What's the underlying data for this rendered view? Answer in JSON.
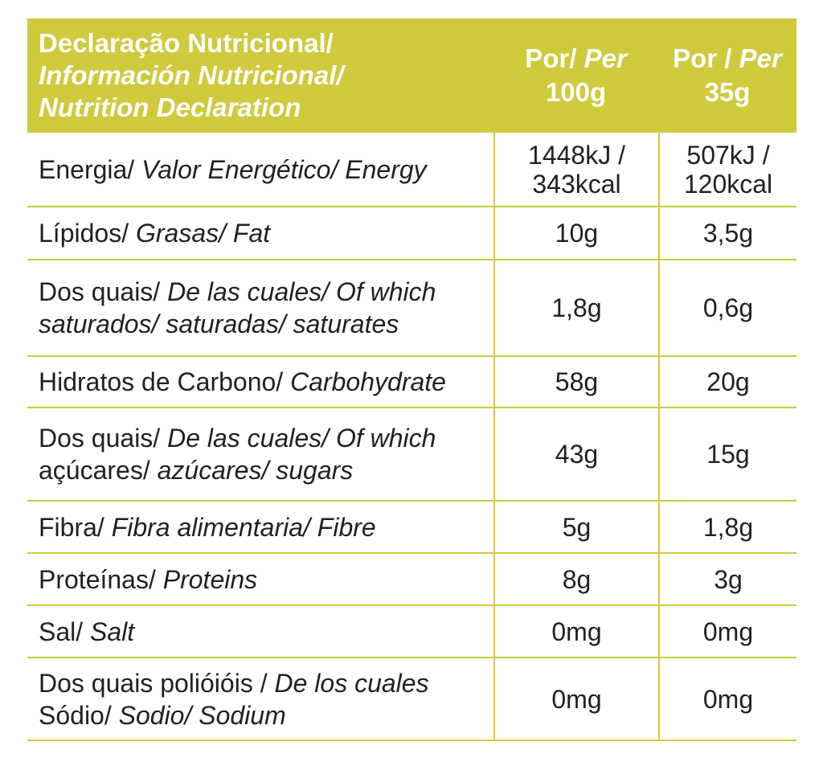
{
  "header": {
    "title_line1": "Declaração Nutricional/",
    "title_line2": "Información Nutricional/",
    "title_line3": "Nutrition Declaration",
    "col1_a": "Por/",
    "col1_b": " Per",
    "col1_c": "100g",
    "col2_a": "Por /",
    "col2_b": " Per",
    "col2_c": "35g"
  },
  "rows": [
    {
      "pt": "Energia/",
      "it1": " Valor Energético/ Energy",
      "pt2": "",
      "it2": "",
      "v100": "1448kJ /",
      "v100b": "343kcal",
      "v35": "507kJ /",
      "v35b": "120kcal"
    },
    {
      "pt": "Lípidos/",
      "it1": " Grasas/ Fat",
      "pt2": "",
      "it2": "",
      "v100": "10g",
      "v100b": "",
      "v35": "3,5g",
      "v35b": ""
    },
    {
      "pt": "Dos quais/",
      "it1": " De las cuales/ Of which",
      "pt2": "",
      "it2": "saturados/ saturadas/ saturates",
      "v100": "1,8g",
      "v100b": "",
      "v35": "0,6g",
      "v35b": ""
    },
    {
      "pt": "Hidratos de Carbono/",
      "it1": " Carbohydrate",
      "pt2": "",
      "it2": "",
      "v100": "58g",
      "v100b": "",
      "v35": "20g",
      "v35b": ""
    },
    {
      "pt": "Dos quais/",
      "it1": " De las cuales/ Of which",
      "pt2": "açúcares/",
      "it2": " azúcares/ sugars",
      "v100": "43g",
      "v100b": "",
      "v35": "15g",
      "v35b": ""
    },
    {
      "pt": "Fibra/",
      "it1": " Fibra alimentaria/ Fibre",
      "pt2": "",
      "it2": "",
      "v100": "5g",
      "v100b": "",
      "v35": "1,8g",
      "v35b": ""
    },
    {
      "pt": "Proteínas/",
      "it1": " Proteins",
      "pt2": "",
      "it2": "",
      "v100": "8g",
      "v100b": "",
      "v35": "3g",
      "v35b": ""
    },
    {
      "pt": "Sal/",
      "it1": " Salt",
      "pt2": "",
      "it2": "",
      "v100": "0mg",
      "v100b": "",
      "v35": "0mg",
      "v35b": ""
    },
    {
      "pt": "Dos quais polióióis /",
      "it1": " De los cuales",
      "pt2": "Sódio/",
      "it2": " Sodio/ Sodium",
      "v100": "0mg",
      "v100b": "",
      "v35": "0mg",
      "v35b": ""
    }
  ]
}
